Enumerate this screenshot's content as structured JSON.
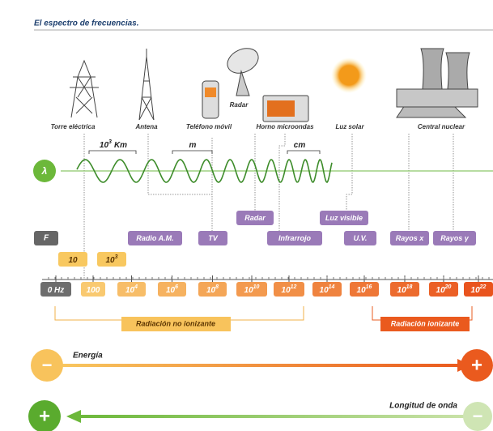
{
  "header": {
    "title": "El espectro de frecuencias."
  },
  "sources": [
    "Torre eléctrica",
    "Antena",
    "Teléfono móvil",
    "Radar",
    "Horno microondas",
    "Luz solar",
    "Central nuclear"
  ],
  "wave": {
    "symbol": "λ",
    "labels": [
      {
        "base": "10",
        "exp": "3",
        "unit": "Km"
      },
      {
        "base": "m"
      },
      {
        "base": "cm"
      }
    ]
  },
  "frequency": {
    "symbol": "F",
    "bands": [
      "Radio A.M.",
      "TV",
      "Radar",
      "Infrarrojo",
      "Luz visible",
      "U.V.",
      "Rayos x",
      "Rayos γ"
    ],
    "low_labels": [
      {
        "base": "10"
      },
      {
        "base": "10",
        "exp": "3"
      }
    ],
    "scale": [
      {
        "base": "0 Hz"
      },
      {
        "base": "100"
      },
      {
        "base": "10",
        "exp": "4"
      },
      {
        "base": "10",
        "exp": "6"
      },
      {
        "base": "10",
        "exp": "8"
      },
      {
        "base": "10",
        "exp": "10"
      },
      {
        "base": "10",
        "exp": "12"
      },
      {
        "base": "10",
        "exp": "14"
      },
      {
        "base": "10",
        "exp": "16"
      },
      {
        "base": "10",
        "exp": "18"
      },
      {
        "base": "10",
        "exp": "20"
      },
      {
        "base": "10",
        "exp": "22"
      }
    ]
  },
  "radiation": {
    "non_ionizing": "Radiación no ionizante",
    "ionizing": "Radiación ionizante"
  },
  "energy": {
    "label": "Energía",
    "low": "−",
    "high": "+"
  },
  "wavelength": {
    "label": "Longitud de onda",
    "long": "+",
    "short": "−"
  }
}
